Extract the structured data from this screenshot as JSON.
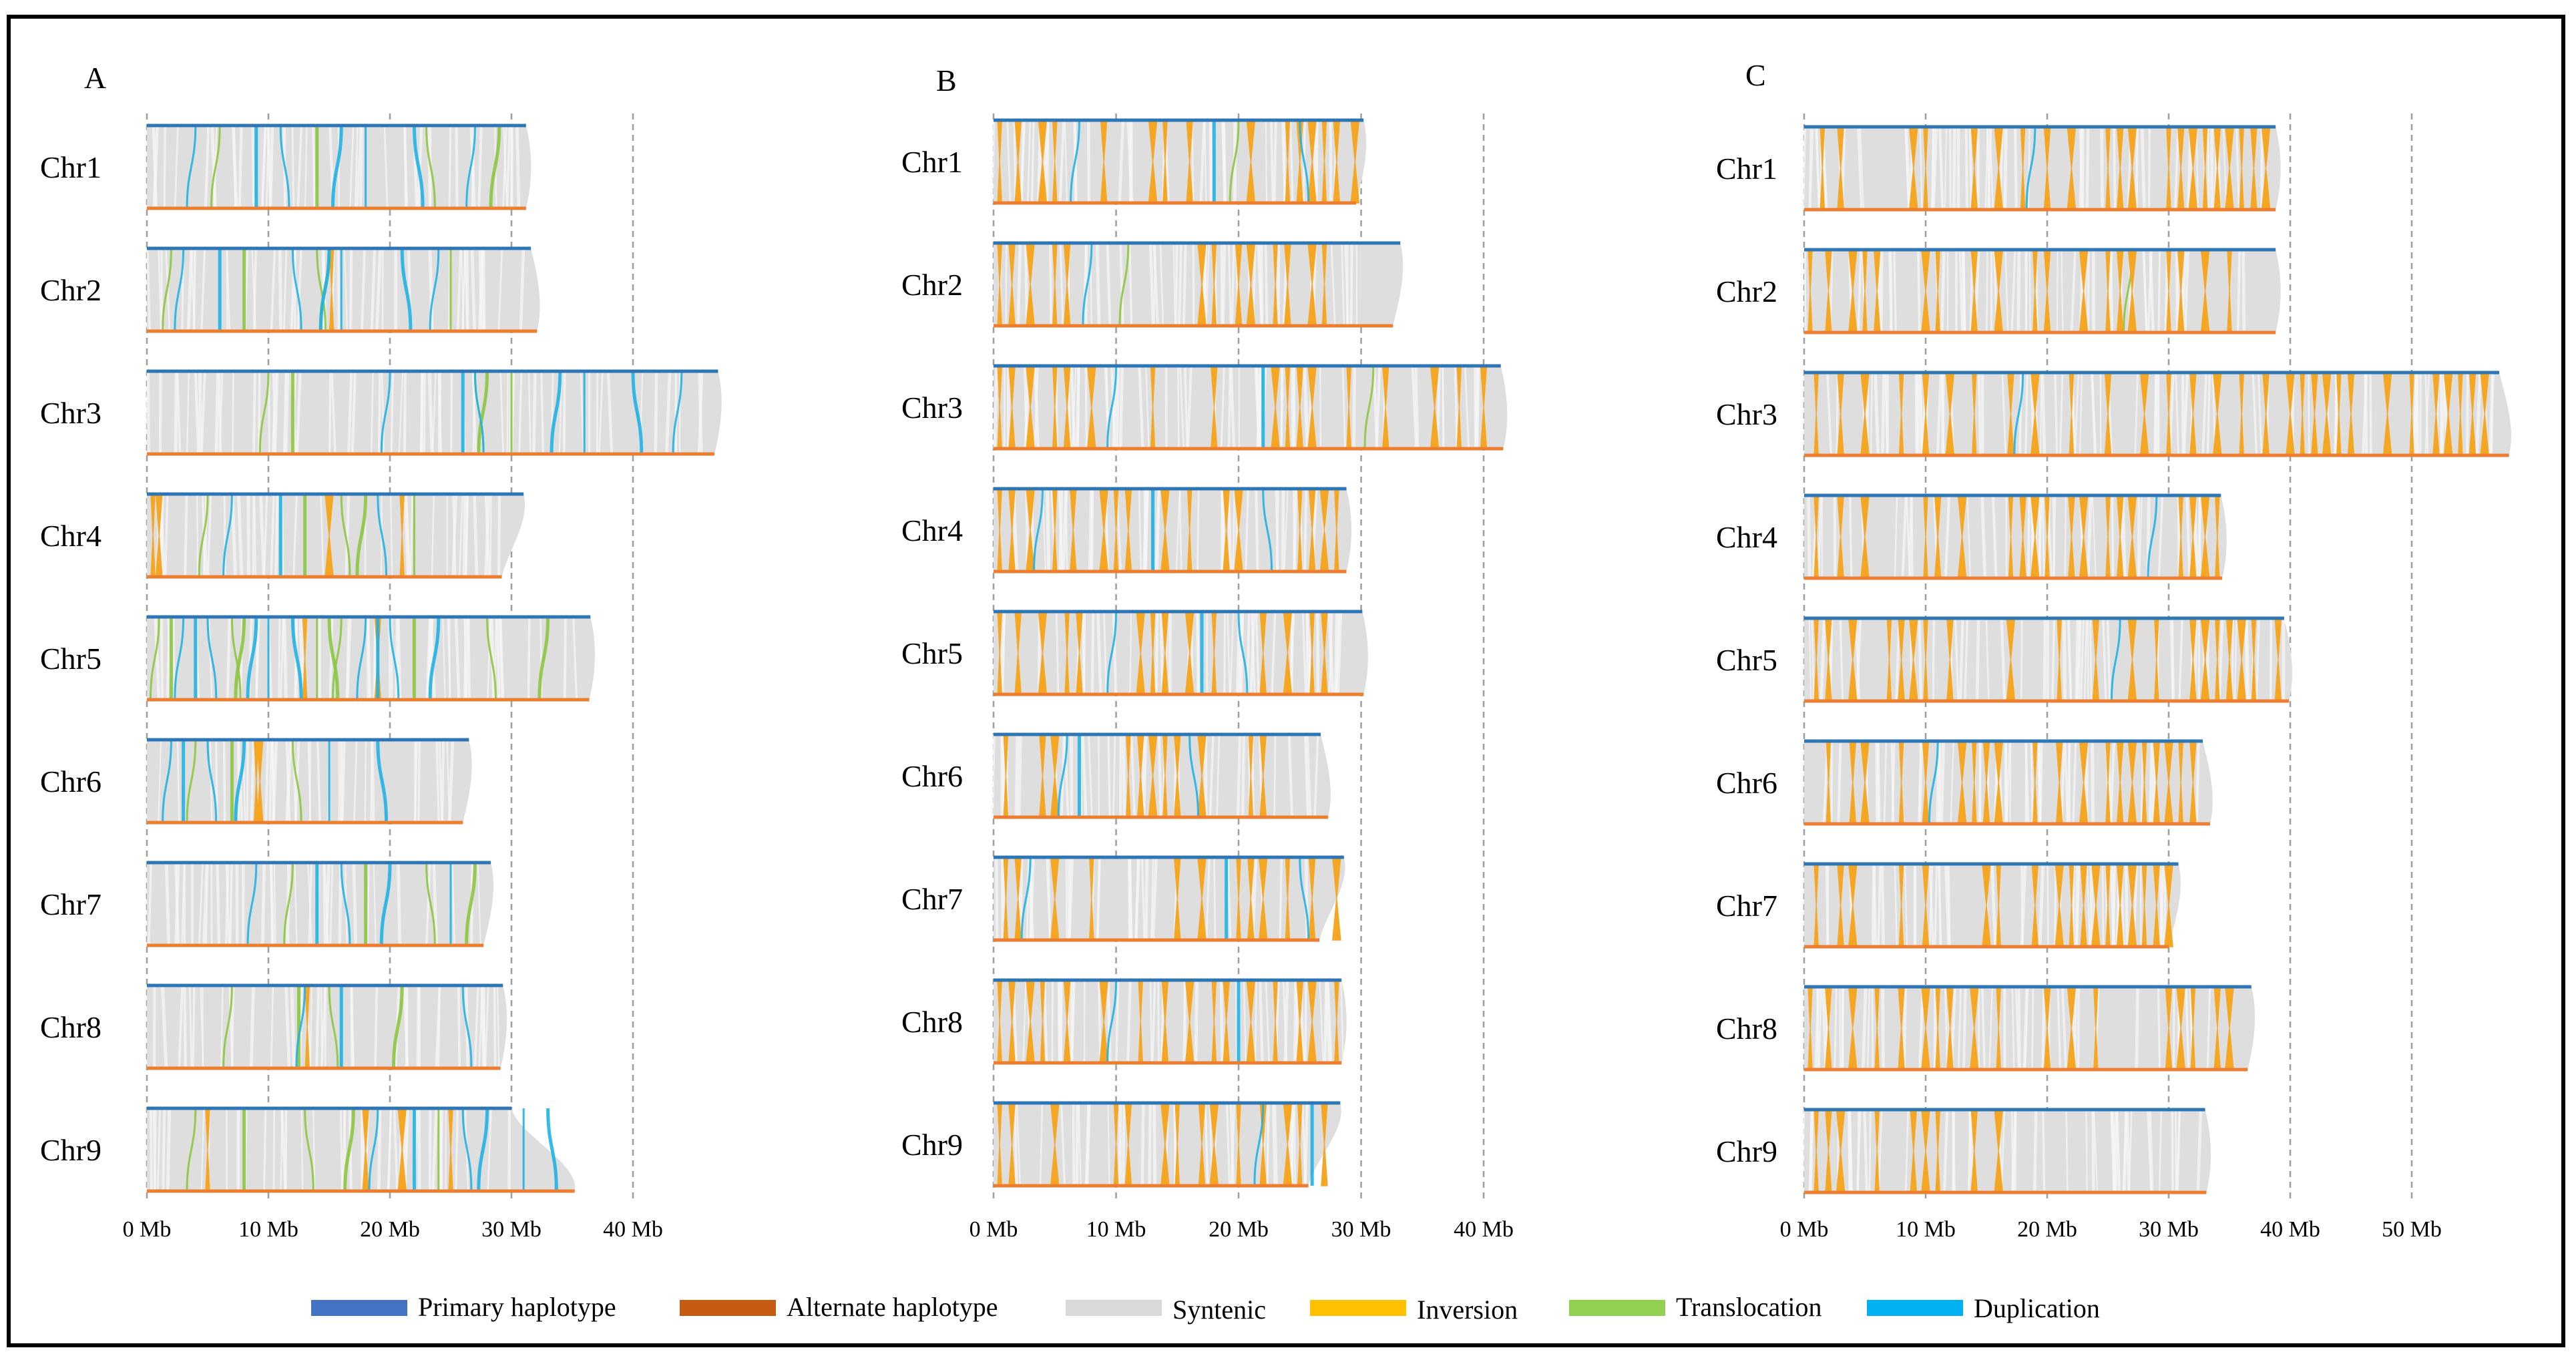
{
  "chart_data": [
    {
      "type": "synteny",
      "panel": "A",
      "x_unit": "Mb",
      "x_ticks": [
        "0 Mb",
        "10 Mb",
        "20 Mb",
        "30 Mb",
        "40 Mb"
      ],
      "x_tick_values": [
        0,
        10,
        20,
        30,
        40
      ],
      "xlim": [
        0,
        40
      ],
      "chromosomes": [
        {
          "name": "Chr1",
          "primary_mb": 31.2,
          "alternate_mb": 31.2,
          "events": {
            "duplication": [
              4,
              9,
              11,
              16,
              18,
              22,
              27
            ],
            "translocation": [
              6,
              14,
              23,
              29
            ],
            "inversion": []
          }
        },
        {
          "name": "Chr2",
          "primary_mb": 31.6,
          "alternate_mb": 32.1,
          "events": {
            "duplication": [
              3,
              6,
              12,
              15,
              16,
              21,
              24
            ],
            "translocation": [
              2,
              8,
              14,
              15,
              25
            ],
            "inversion": [
              15.2
            ]
          }
        },
        {
          "name": "Chr3",
          "primary_mb": 47.0,
          "alternate_mb": 46.7,
          "events": {
            "duplication": [
              20,
              26,
              27,
              34,
              36,
              40,
              44
            ],
            "translocation": [
              10,
              12,
              27,
              28,
              30
            ],
            "inversion": []
          }
        },
        {
          "name": "Chr4",
          "primary_mb": 31.0,
          "alternate_mb": 29.2,
          "events": {
            "duplication": [
              7,
              11,
              19
            ],
            "translocation": [
              5,
              13,
              16,
              18,
              22
            ],
            "inversion": [
              0.5,
              1.0,
              15,
              21
            ]
          }
        },
        {
          "name": "Chr5",
          "primary_mb": 36.5,
          "alternate_mb": 36.4,
          "events": {
            "duplication": [
              3,
              4,
              5,
              9,
              10,
              12,
              18,
              19,
              20,
              24
            ],
            "translocation": [
              1,
              2,
              7,
              8,
              14,
              15,
              16,
              22,
              28,
              33
            ],
            "inversion": [
              13,
              19
            ]
          }
        },
        {
          "name": "Chr6",
          "primary_mb": 26.5,
          "alternate_mb": 26.0,
          "events": {
            "duplication": [
              2,
              3,
              5,
              8,
              15,
              19
            ],
            "translocation": [
              4,
              7,
              12
            ],
            "inversion": [
              9,
              9.3
            ]
          }
        },
        {
          "name": "Chr7",
          "primary_mb": 28.3,
          "alternate_mb": 27.7,
          "events": {
            "duplication": [
              9,
              14,
              16,
              20,
              25
            ],
            "translocation": [
              12,
              18,
              23,
              27
            ],
            "inversion": []
          }
        },
        {
          "name": "Chr8",
          "primary_mb": 29.3,
          "alternate_mb": 29.1,
          "events": {
            "duplication": [
              13,
              16,
              26
            ],
            "translocation": [
              7,
              12.5,
              15,
              21
            ],
            "inversion": [
              13.2
            ]
          }
        },
        {
          "name": "Chr9",
          "primary_mb": 30.0,
          "alternate_mb": 35.2,
          "events": {
            "duplication": [
              19,
              22,
              26,
              28,
              31,
              33
            ],
            "translocation": [
              4,
              8,
              13,
              17,
              24
            ],
            "inversion": [
              5,
              18,
              21,
              25
            ]
          }
        }
      ]
    },
    {
      "type": "synteny",
      "panel": "B",
      "x_unit": "Mb",
      "x_ticks": [
        "0 Mb",
        "10 Mb",
        "20 Mb",
        "30 Mb",
        "40 Mb"
      ],
      "x_tick_values": [
        0,
        10,
        20,
        30,
        40
      ],
      "xlim": [
        0,
        40
      ],
      "chromosomes": [
        {
          "name": "Chr1",
          "primary_mb": 30.2,
          "alternate_mb": 29.6,
          "events": {
            "inversion": [
              0.5,
              2,
              4,
              5,
              9,
              13,
              14,
              16,
              21,
              24,
              25,
              26,
              27,
              28,
              29.5
            ],
            "duplication": [
              7,
              18,
              25
            ],
            "translocation": [
              20
            ]
          }
        },
        {
          "name": "Chr2",
          "primary_mb": 33.2,
          "alternate_mb": 32.6,
          "events": {
            "inversion": [
              0.5,
              1.5,
              3,
              5,
              6,
              17,
              18,
              20,
              21,
              23,
              24,
              26,
              27
            ],
            "duplication": [
              8
            ],
            "translocation": [
              11
            ]
          }
        },
        {
          "name": "Chr3",
          "primary_mb": 41.4,
          "alternate_mb": 41.6,
          "events": {
            "inversion": [
              0.5,
              1.5,
              3,
              5,
              6,
              8,
              13,
              18,
              23,
              24,
              25,
              26,
              29,
              32,
              36,
              38,
              40
            ],
            "duplication": [
              10,
              22
            ],
            "translocation": [
              31
            ]
          }
        },
        {
          "name": "Chr4",
          "primary_mb": 28.8,
          "alternate_mb": 28.8,
          "events": {
            "inversion": [
              0.5,
              1.5,
              3,
              5,
              6.5,
              9,
              10,
              11,
              14,
              16,
              19,
              20,
              25,
              26,
              27,
              28
            ],
            "duplication": [
              4,
              13,
              22
            ],
            "translocation": []
          }
        },
        {
          "name": "Chr5",
          "primary_mb": 30.1,
          "alternate_mb": 30.2,
          "events": {
            "inversion": [
              0.5,
              2,
              4,
              6,
              7,
              12,
              13,
              14,
              16,
              18,
              22,
              24,
              26,
              27
            ],
            "duplication": [
              10,
              17,
              20
            ],
            "translocation": []
          }
        },
        {
          "name": "Chr6",
          "primary_mb": 26.7,
          "alternate_mb": 27.3,
          "events": {
            "inversion": [
              1,
              4,
              5,
              11,
              12,
              13,
              14,
              15,
              17,
              21,
              22
            ],
            "duplication": [
              6,
              7,
              16
            ],
            "translocation": []
          }
        },
        {
          "name": "Chr7",
          "primary_mb": 28.6,
          "alternate_mb": 26.6,
          "events": {
            "inversion": [
              1,
              2,
              5,
              8,
              15,
              17,
              20,
              21,
              22,
              24,
              26,
              28
            ],
            "duplication": [
              3,
              19,
              25
            ],
            "translocation": []
          }
        },
        {
          "name": "Chr8",
          "primary_mb": 28.4,
          "alternate_mb": 28.4,
          "events": {
            "inversion": [
              0.5,
              1.5,
              3,
              4,
              6,
              9,
              12,
              14,
              16,
              18,
              19,
              21,
              23,
              25,
              26,
              28
            ],
            "duplication": [
              10,
              20
            ],
            "translocation": []
          }
        },
        {
          "name": "Chr9",
          "primary_mb": 28.3,
          "alternate_mb": 25.7,
          "events": {
            "inversion": [
              0.5,
              1.5,
              5,
              10,
              11,
              14,
              15,
              17,
              18,
              20,
              22,
              24,
              25,
              27
            ],
            "duplication": [
              22,
              26
            ],
            "translocation": []
          }
        }
      ]
    },
    {
      "type": "synteny",
      "panel": "C",
      "x_unit": "Mb",
      "x_ticks": [
        "0 Mb",
        "10 Mb",
        "20 Mb",
        "30 Mb",
        "40 Mb",
        "50 Mb"
      ],
      "x_tick_values": [
        0,
        10,
        20,
        30,
        40,
        50
      ],
      "xlim": [
        0,
        50
      ],
      "chromosomes": [
        {
          "name": "Chr1",
          "primary_mb": 38.8,
          "alternate_mb": 38.8,
          "events": {
            "inversion": [
              1.5,
              3,
              9,
              10,
              14,
              16,
              18,
              20,
              22,
              25,
              26,
              27,
              30,
              31,
              32,
              33,
              34,
              35,
              36,
              37,
              38
            ],
            "duplication": [
              19
            ],
            "translocation": []
          }
        },
        {
          "name": "Chr2",
          "primary_mb": 38.8,
          "alternate_mb": 38.8,
          "events": {
            "inversion": [
              0.5,
              2,
              4,
              5,
              6,
              10,
              11,
              14,
              16,
              19,
              20,
              23,
              25,
              26,
              27,
              30,
              31,
              33,
              35
            ],
            "duplication": [],
            "translocation": [
              27
            ]
          }
        },
        {
          "name": "Chr3",
          "primary_mb": 57.2,
          "alternate_mb": 58.0,
          "events": {
            "inversion": [
              1,
              3,
              5,
              8,
              10,
              12,
              14,
              17,
              19,
              22,
              25,
              28,
              30,
              32,
              34,
              36,
              38,
              40,
              41,
              42,
              43,
              44,
              45,
              48,
              50,
              52,
              53,
              54,
              55,
              56
            ],
            "duplication": [
              18
            ],
            "translocation": []
          }
        },
        {
          "name": "Chr4",
          "primary_mb": 34.3,
          "alternate_mb": 34.4,
          "events": {
            "inversion": [
              1,
              3,
              5,
              10,
              11,
              13,
              17,
              18,
              19,
              20,
              22,
              23,
              25,
              26,
              27,
              31,
              32,
              33,
              34
            ],
            "duplication": [
              29
            ],
            "translocation": []
          }
        },
        {
          "name": "Chr5",
          "primary_mb": 39.5,
          "alternate_mb": 39.9,
          "events": {
            "inversion": [
              1,
              2,
              4,
              7,
              8,
              9,
              10,
              12,
              17,
              21,
              24,
              27,
              29,
              32,
              33,
              34,
              35,
              36,
              37,
              39
            ],
            "duplication": [
              26
            ],
            "translocation": []
          }
        },
        {
          "name": "Chr6",
          "primary_mb": 32.8,
          "alternate_mb": 33.4,
          "events": {
            "inversion": [
              2,
              4,
              5,
              8,
              10,
              13,
              14,
              15,
              16,
              19,
              21,
              23,
              25,
              26,
              27,
              28,
              29,
              30,
              31,
              32
            ],
            "duplication": [
              11
            ],
            "translocation": []
          }
        },
        {
          "name": "Chr7",
          "primary_mb": 30.8,
          "alternate_mb": 30.0,
          "events": {
            "inversion": [
              1,
              3,
              4,
              8,
              10,
              15,
              16,
              19,
              21,
              22,
              23,
              24,
              25,
              26,
              27,
              28,
              29,
              30
            ],
            "duplication": [],
            "translocation": []
          }
        },
        {
          "name": "Chr8",
          "primary_mb": 36.8,
          "alternate_mb": 36.5,
          "events": {
            "inversion": [
              0.5,
              2,
              4,
              6,
              8,
              10,
              11,
              12,
              14,
              16,
              20,
              22,
              24,
              30,
              31,
              32,
              34,
              35
            ],
            "duplication": [],
            "translocation": []
          }
        },
        {
          "name": "Chr9",
          "primary_mb": 33.0,
          "alternate_mb": 33.1,
          "events": {
            "inversion": [
              1,
              2,
              3,
              6,
              9,
              10,
              11,
              14,
              16
            ],
            "duplication": [],
            "translocation": []
          }
        }
      ]
    }
  ],
  "panels": {
    "A": "A",
    "B": "B",
    "C": "C"
  },
  "legend": [
    {
      "label": "Primary haplotype",
      "color": "#4472C4"
    },
    {
      "label": "Alternate haplotype",
      "color": "#C55A11"
    },
    {
      "label": "Syntenic",
      "color": "#D9D9D9"
    },
    {
      "label": "Inversion",
      "color": "#FFC000"
    },
    {
      "label": "Translocation",
      "color": "#92D050"
    },
    {
      "label": "Duplication",
      "color": "#00B0F0"
    }
  ],
  "colors": {
    "primary_line": "#2E75B6",
    "alternate_line": "#ED7D31",
    "syntenic": "#DEDEDE",
    "syntenic_edge": "#F7F7F7",
    "inversion": "#F5A623",
    "translocation": "#8CC63F",
    "duplication": "#1FB1E6",
    "grid": "#9E9E9E"
  }
}
